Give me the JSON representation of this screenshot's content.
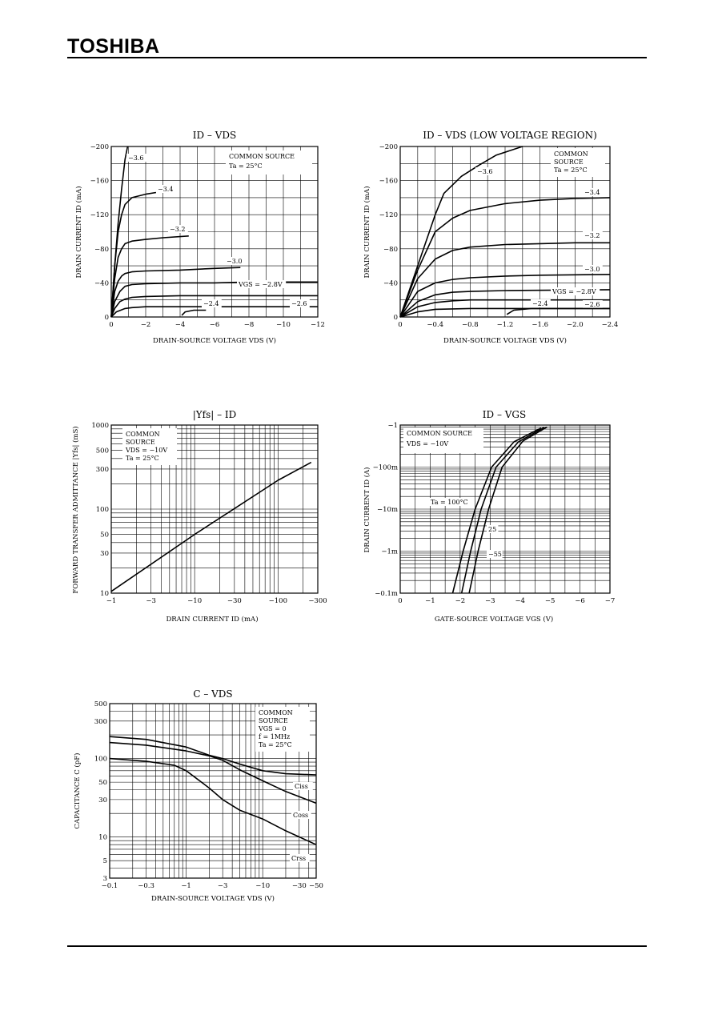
{
  "header": {
    "brand": "TOSHIBA"
  },
  "chart_data": [
    {
      "id": "c1",
      "type": "line",
      "title": "ID – VDS",
      "xlabel": "DRAIN-SOURCE VOLTAGE VDS (V)",
      "ylabel": "DRAIN CURRENT ID (mA)",
      "xlim": [
        0,
        -12
      ],
      "ylim": [
        0,
        -200
      ],
      "xticks": [
        0,
        -2,
        -4,
        -6,
        -8,
        -10,
        -12
      ],
      "xtick_labels": [
        "0",
        "−2",
        "−4",
        "−6",
        "−8",
        "−10",
        "−12"
      ],
      "yticks": [
        0,
        -40,
        -80,
        -120,
        -160,
        -200
      ],
      "ytick_labels": [
        "0",
        "−40",
        "−80",
        "−120",
        "−160",
        "−200"
      ],
      "annotation": [
        "COMMON SOURCE",
        "Ta = 25°C"
      ],
      "series": [
        {
          "name": "−3.6",
          "points": [
            [
              0,
              0
            ],
            [
              -0.2,
              -60
            ],
            [
              -0.4,
              -110
            ],
            [
              -0.6,
              -150
            ],
            [
              -0.8,
              -185
            ],
            [
              -0.95,
              -200
            ]
          ]
        },
        {
          "name": "−3.4",
          "points": [
            [
              0,
              0
            ],
            [
              -0.2,
              -60
            ],
            [
              -0.4,
              -100
            ],
            [
              -0.6,
              -120
            ],
            [
              -0.8,
              -132
            ],
            [
              -1.2,
              -140
            ],
            [
              -2,
              -144
            ],
            [
              -2.6,
              -146
            ]
          ]
        },
        {
          "name": "−3.2",
          "points": [
            [
              0,
              0
            ],
            [
              -0.2,
              -45
            ],
            [
              -0.4,
              -70
            ],
            [
              -0.6,
              -80
            ],
            [
              -0.8,
              -86
            ],
            [
              -1.2,
              -89
            ],
            [
              -2,
              -91
            ],
            [
              -3,
              -93
            ],
            [
              -4.5,
              -95
            ]
          ]
        },
        {
          "name": "−3.0",
          "points": [
            [
              0,
              0
            ],
            [
              -0.2,
              -30
            ],
            [
              -0.4,
              -42
            ],
            [
              -0.6,
              -48
            ],
            [
              -0.8,
              -51
            ],
            [
              -1.2,
              -53
            ],
            [
              -2,
              -54
            ],
            [
              -4,
              -55
            ],
            [
              -6,
              -57
            ],
            [
              -7.5,
              -58
            ]
          ]
        },
        {
          "name": "VGS = −2.8V",
          "points": [
            [
              0,
              0
            ],
            [
              -0.2,
              -18
            ],
            [
              -0.5,
              -30
            ],
            [
              -0.8,
              -36
            ],
            [
              -1.2,
              -38
            ],
            [
              -2,
              -39
            ],
            [
              -4,
              -40
            ],
            [
              -6,
              -40
            ],
            [
              -8,
              -41
            ],
            [
              -10,
              -41
            ],
            [
              -12,
              -41
            ]
          ]
        },
        {
          "name": "",
          "points": [
            [
              0,
              0
            ],
            [
              -0.2,
              -10
            ],
            [
              -0.5,
              -18
            ],
            [
              -0.8,
              -21
            ],
            [
              -1.2,
              -23
            ],
            [
              -2,
              -24
            ],
            [
              -4,
              -25
            ],
            [
              -6,
              -25
            ],
            [
              -8,
              -25
            ],
            [
              -10,
              -25
            ],
            [
              -12,
              -25
            ]
          ]
        },
        {
          "name": "−2.6",
          "points": [
            [
              0,
              0
            ],
            [
              -0.3,
              -6
            ],
            [
              -0.8,
              -10
            ],
            [
              -1.2,
              -11
            ],
            [
              -2,
              -12
            ],
            [
              -4,
              -12
            ],
            [
              -6,
              -12
            ],
            [
              -8,
              -12
            ],
            [
              -10,
              -12
            ],
            [
              -12,
              -12
            ]
          ]
        },
        {
          "name": "−2.4",
          "points": [
            [
              -4.1,
              -2
            ],
            [
              -4.3,
              -6
            ],
            [
              -4.8,
              -8
            ],
            [
              -5.5,
              -8
            ]
          ]
        }
      ]
    },
    {
      "id": "c2",
      "type": "line",
      "title": "ID – VDS (LOW VOLTAGE REGION)",
      "xlabel": "DRAIN-SOURCE VOLTAGE VDS (V)",
      "ylabel": "DRAIN CURRENT ID (mA)",
      "xlim": [
        0,
        -2.4
      ],
      "ylim": [
        0,
        -200
      ],
      "xticks": [
        0,
        -0.4,
        -0.8,
        -1.2,
        -1.6,
        -2.0,
        -2.4
      ],
      "xtick_labels": [
        "0",
        "−0.4",
        "−0.8",
        "−1.2",
        "−1.6",
        "−2.0",
        "−2.4"
      ],
      "yticks": [
        0,
        -40,
        -80,
        -120,
        -160,
        -200
      ],
      "ytick_labels": [
        "0",
        "−40",
        "−80",
        "−120",
        "−160",
        "−200"
      ],
      "annotation": [
        "COMMON",
        "SOURCE",
        "Ta = 25°C"
      ],
      "series": [
        {
          "name": "−3.6",
          "points": [
            [
              0,
              0
            ],
            [
              -0.2,
              -60
            ],
            [
              -0.4,
              -120
            ],
            [
              -0.5,
              -145
            ],
            [
              -0.7,
              -165
            ],
            [
              -0.9,
              -178
            ],
            [
              -1.1,
              -190
            ],
            [
              -1.4,
              -200
            ]
          ]
        },
        {
          "name": "−3.4",
          "points": [
            [
              0,
              0
            ],
            [
              -0.2,
              -55
            ],
            [
              -0.4,
              -100
            ],
            [
              -0.6,
              -116
            ],
            [
              -0.8,
              -125
            ],
            [
              -1.2,
              -133
            ],
            [
              -1.6,
              -137
            ],
            [
              -2.0,
              -139
            ],
            [
              -2.4,
              -140
            ]
          ]
        },
        {
          "name": "−3.2",
          "points": [
            [
              0,
              0
            ],
            [
              -0.2,
              -45
            ],
            [
              -0.4,
              -68
            ],
            [
              -0.6,
              -78
            ],
            [
              -0.8,
              -82
            ],
            [
              -1.2,
              -85
            ],
            [
              -1.6,
              -86
            ],
            [
              -2.0,
              -87
            ],
            [
              -2.4,
              -87
            ]
          ]
        },
        {
          "name": "−3.0",
          "points": [
            [
              0,
              0
            ],
            [
              -0.2,
              -30
            ],
            [
              -0.4,
              -40
            ],
            [
              -0.6,
              -44
            ],
            [
              -0.8,
              -46
            ],
            [
              -1.2,
              -48
            ],
            [
              -1.6,
              -49
            ],
            [
              -2.4,
              -50
            ]
          ]
        },
        {
          "name": "VGS = −2.8V",
          "points": [
            [
              0,
              0
            ],
            [
              -0.2,
              -18
            ],
            [
              -0.4,
              -26
            ],
            [
              -0.6,
              -29
            ],
            [
              -0.8,
              -30
            ],
            [
              -1.2,
              -31
            ],
            [
              -2.4,
              -32
            ]
          ]
        },
        {
          "name": "",
          "points": [
            [
              0,
              0
            ],
            [
              -0.2,
              -12
            ],
            [
              -0.4,
              -17
            ],
            [
              -0.6,
              -19
            ],
            [
              -0.8,
              -20
            ],
            [
              -1.2,
              -20
            ],
            [
              -2.4,
              -20
            ]
          ]
        },
        {
          "name": "−2.6",
          "points": [
            [
              0,
              0
            ],
            [
              -0.2,
              -6
            ],
            [
              -0.4,
              -9
            ],
            [
              -0.8,
              -10
            ],
            [
              -1.2,
              -10
            ],
            [
              -2.4,
              -10
            ]
          ]
        },
        {
          "name": "−2.4",
          "points": [
            [
              -1.22,
              -3
            ],
            [
              -1.3,
              -8
            ],
            [
              -1.5,
              -10
            ],
            [
              -1.8,
              -10
            ],
            [
              -2.4,
              -10
            ]
          ]
        }
      ]
    },
    {
      "id": "c3",
      "type": "line",
      "title": "|Yfs| – ID",
      "xlabel": "DRAIN CURRENT ID (mA)",
      "ylabel": "FORWARD TRANSFER ADMITTANCE |Yfs| (mS)",
      "xscale": "log",
      "yscale": "log",
      "xlim": [
        -1,
        -300
      ],
      "ylim": [
        10,
        1000
      ],
      "xticks": [
        -1,
        -3,
        -10,
        -30,
        -100,
        -300
      ],
      "xtick_labels": [
        "−1",
        "−3",
        "−10",
        "−30",
        "−100",
        "−300"
      ],
      "yticks": [
        10,
        30,
        50,
        100,
        300,
        500,
        1000
      ],
      "ytick_labels": [
        "10",
        "30",
        "50",
        "100",
        "300",
        "500",
        "1000"
      ],
      "annotation": [
        "COMMON",
        "SOURCE",
        "VDS = −10V",
        "Ta = 25°C"
      ],
      "series": [
        {
          "name": "",
          "points": [
            [
              -1,
              10.5
            ],
            [
              -10,
              50
            ],
            [
              -100,
              220
            ],
            [
              -250,
              360
            ]
          ]
        }
      ]
    },
    {
      "id": "c4",
      "type": "line",
      "title": "ID – VGS",
      "xlabel": "GATE-SOURCE VOLTAGE VGS (V)",
      "ylabel": "DRAIN CURRENT ID (A)",
      "yscale": "log",
      "xlim": [
        0,
        -7
      ],
      "ylim": [
        -0.0001,
        -1
      ],
      "xticks": [
        0,
        -1,
        -2,
        -3,
        -4,
        -5,
        -6,
        -7
      ],
      "xtick_labels": [
        "0",
        "−1",
        "−2",
        "−3",
        "−4",
        "−5",
        "−6",
        "−7"
      ],
      "yticks": [
        -0.0001,
        -0.001,
        -0.01,
        -0.1,
        -1
      ],
      "ytick_labels": [
        "−0.1m",
        "−1m",
        "−10m",
        "−100m",
        "−1"
      ],
      "annotation": [
        "COMMON SOURCE",
        "VDS = −10V"
      ],
      "series": [
        {
          "name": "Ta = 100°C",
          "points": [
            [
              -1.75,
              -0.0001
            ],
            [
              -2.1,
              -0.001
            ],
            [
              -2.5,
              -0.01
            ],
            [
              -3.05,
              -0.1
            ],
            [
              -3.8,
              -0.4
            ],
            [
              -4.7,
              -0.85
            ]
          ]
        },
        {
          "name": "25",
          "points": [
            [
              -2.05,
              -0.0001
            ],
            [
              -2.35,
              -0.001
            ],
            [
              -2.7,
              -0.01
            ],
            [
              -3.2,
              -0.1
            ],
            [
              -3.95,
              -0.4
            ],
            [
              -4.8,
              -0.88
            ]
          ]
        },
        {
          "name": "−55",
          "points": [
            [
              -2.3,
              -0.0001
            ],
            [
              -2.6,
              -0.001
            ],
            [
              -2.95,
              -0.01
            ],
            [
              -3.4,
              -0.1
            ],
            [
              -4.1,
              -0.42
            ],
            [
              -4.9,
              -0.9
            ]
          ]
        }
      ]
    },
    {
      "id": "c5",
      "type": "line",
      "title": "C – VDS",
      "xlabel": "DRAIN-SOURCE VOLTAGE VDS (V)",
      "ylabel": "CAPACITANCE C (pF)",
      "xscale": "log",
      "yscale": "log",
      "xlim": [
        -0.1,
        -50
      ],
      "ylim": [
        3,
        500
      ],
      "xticks": [
        -0.1,
        -0.3,
        -1,
        -3,
        -10,
        -30,
        -50
      ],
      "xtick_labels": [
        "−0.1",
        "−0.3",
        "−1",
        "−3",
        "−10",
        "−30",
        "−50"
      ],
      "yticks": [
        3,
        5,
        10,
        30,
        50,
        100,
        300,
        500
      ],
      "ytick_labels": [
        "3",
        "5",
        "10",
        "30",
        "50",
        "100",
        "300",
        "500"
      ],
      "annotation": [
        "COMMON",
        "SOURCE",
        "VGS = 0",
        "f = 1MHz",
        "Ta = 25°C"
      ],
      "series": [
        {
          "name": "Ciss",
          "points": [
            [
              -0.1,
              190
            ],
            [
              -0.3,
              175
            ],
            [
              -1,
              140
            ],
            [
              -2,
              110
            ],
            [
              -3,
              100
            ],
            [
              -5,
              85
            ],
            [
              -10,
              70
            ],
            [
              -20,
              64
            ],
            [
              -50,
              62
            ]
          ]
        },
        {
          "name": "Coss",
          "points": [
            [
              -0.1,
              160
            ],
            [
              -0.3,
              148
            ],
            [
              -1,
              125
            ],
            [
              -2,
              108
            ],
            [
              -3,
              95
            ],
            [
              -5,
              72
            ],
            [
              -10,
              52
            ],
            [
              -20,
              38
            ],
            [
              -50,
              27
            ]
          ]
        },
        {
          "name": "Crss",
          "points": [
            [
              -0.1,
              100
            ],
            [
              -0.3,
              92
            ],
            [
              -0.7,
              82
            ],
            [
              -1,
              70
            ],
            [
              -2,
              42
            ],
            [
              -3,
              30
            ],
            [
              -5,
              22
            ],
            [
              -10,
              17
            ],
            [
              -20,
              12
            ],
            [
              -50,
              8
            ]
          ]
        }
      ]
    }
  ]
}
